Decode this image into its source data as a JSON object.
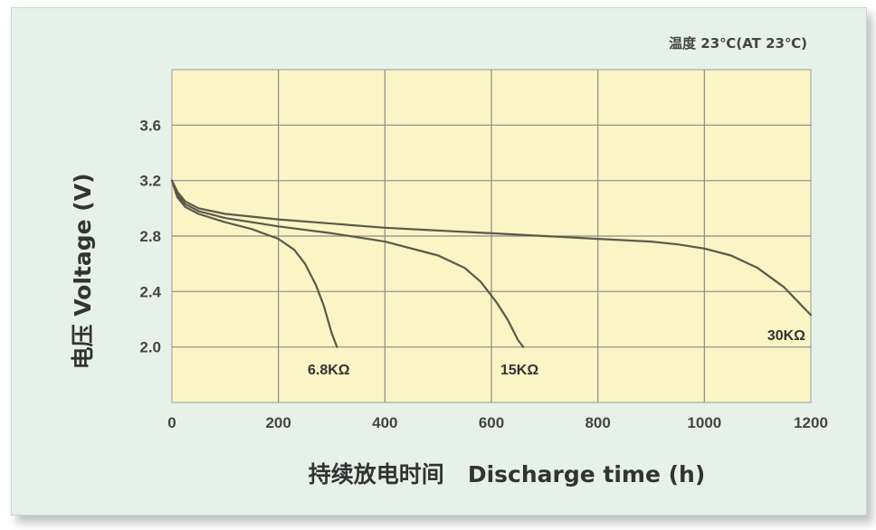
{
  "chart_data": {
    "type": "line",
    "title": "",
    "annotation": "温度 23℃(AT 23℃)",
    "xlabel": "持续放电时间   Discharge time (h)",
    "ylabel": "电压 Voltage (V)",
    "xlim": [
      0,
      1200
    ],
    "ylim": [
      1.6,
      4.0
    ],
    "x_ticks": [
      "0",
      "200",
      "400",
      "600",
      "800",
      "1000",
      "1200"
    ],
    "y_ticks": [
      "2.0",
      "2.4",
      "2.8",
      "3.2",
      "3.6"
    ],
    "grid": true,
    "series": [
      {
        "name": "6.8KΩ",
        "x": [
          0,
          10,
          25,
          50,
          100,
          150,
          200,
          230,
          250,
          270,
          285,
          300,
          310
        ],
        "y": [
          3.2,
          3.08,
          3.01,
          2.96,
          2.9,
          2.85,
          2.78,
          2.7,
          2.6,
          2.45,
          2.3,
          2.1,
          2.0
        ],
        "label": "6.8KΩ"
      },
      {
        "name": "15KΩ",
        "x": [
          0,
          10,
          25,
          50,
          100,
          200,
          300,
          400,
          500,
          550,
          580,
          610,
          630,
          650,
          660
        ],
        "y": [
          3.2,
          3.1,
          3.03,
          2.98,
          2.93,
          2.87,
          2.82,
          2.76,
          2.66,
          2.57,
          2.47,
          2.32,
          2.2,
          2.05,
          2.0
        ],
        "label": "15KΩ"
      },
      {
        "name": "30KΩ",
        "x": [
          0,
          10,
          25,
          50,
          100,
          200,
          300,
          400,
          500,
          600,
          700,
          800,
          900,
          950,
          1000,
          1050,
          1100,
          1150,
          1200
        ],
        "y": [
          3.2,
          3.12,
          3.05,
          3.0,
          2.96,
          2.92,
          2.89,
          2.86,
          2.84,
          2.82,
          2.8,
          2.78,
          2.76,
          2.74,
          2.71,
          2.66,
          2.57,
          2.43,
          2.23
        ],
        "label": "30KΩ"
      }
    ]
  }
}
